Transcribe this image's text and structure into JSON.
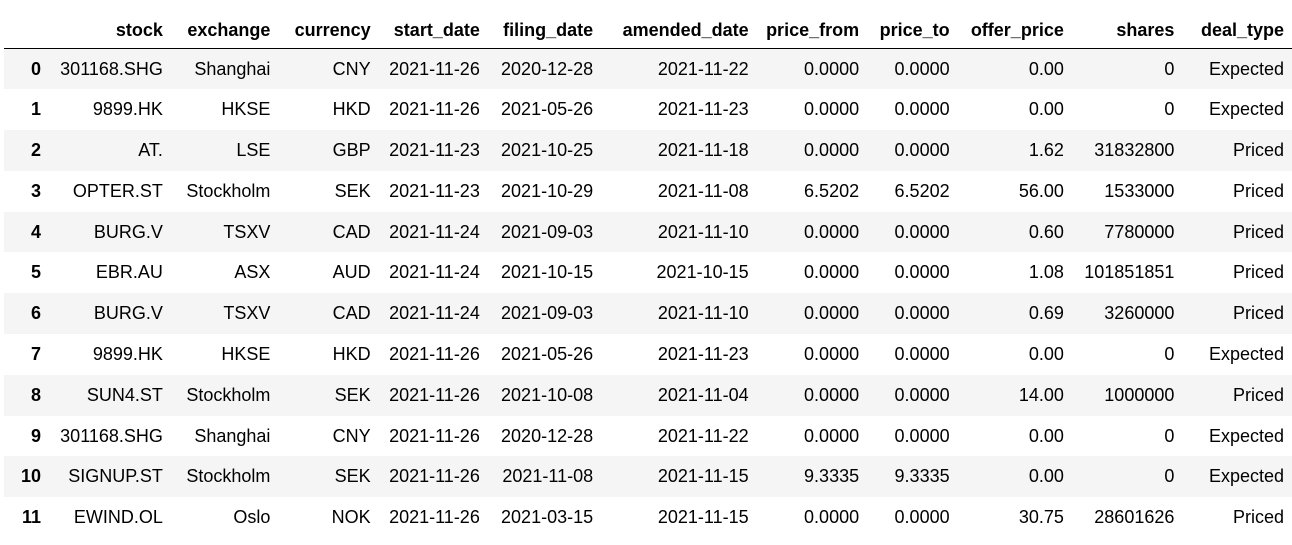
{
  "table": {
    "columns": [
      "stock",
      "exchange",
      "currency",
      "start_date",
      "filing_date",
      "amended_date",
      "price_from",
      "price_to",
      "offer_price",
      "shares",
      "deal_type"
    ],
    "rows": [
      {
        "index": "0",
        "cells": [
          "301168.SHG",
          "Shanghai",
          "CNY",
          "2021-11-26",
          "2020-12-28",
          "2021-11-22",
          "0.0000",
          "0.0000",
          "0.00",
          "0",
          "Expected"
        ]
      },
      {
        "index": "1",
        "cells": [
          "9899.HK",
          "HKSE",
          "HKD",
          "2021-11-26",
          "2021-05-26",
          "2021-11-23",
          "0.0000",
          "0.0000",
          "0.00",
          "0",
          "Expected"
        ]
      },
      {
        "index": "2",
        "cells": [
          "AT.",
          "LSE",
          "GBP",
          "2021-11-23",
          "2021-10-25",
          "2021-11-18",
          "0.0000",
          "0.0000",
          "1.62",
          "31832800",
          "Priced"
        ]
      },
      {
        "index": "3",
        "cells": [
          "OPTER.ST",
          "Stockholm",
          "SEK",
          "2021-11-23",
          "2021-10-29",
          "2021-11-08",
          "6.5202",
          "6.5202",
          "56.00",
          "1533000",
          "Priced"
        ]
      },
      {
        "index": "4",
        "cells": [
          "BURG.V",
          "TSXV",
          "CAD",
          "2021-11-24",
          "2021-09-03",
          "2021-11-10",
          "0.0000",
          "0.0000",
          "0.60",
          "7780000",
          "Priced"
        ]
      },
      {
        "index": "5",
        "cells": [
          "EBR.AU",
          "ASX",
          "AUD",
          "2021-11-24",
          "2021-10-15",
          "2021-10-15",
          "0.0000",
          "0.0000",
          "1.08",
          "101851851",
          "Priced"
        ]
      },
      {
        "index": "6",
        "cells": [
          "BURG.V",
          "TSXV",
          "CAD",
          "2021-11-24",
          "2021-09-03",
          "2021-11-10",
          "0.0000",
          "0.0000",
          "0.69",
          "3260000",
          "Priced"
        ]
      },
      {
        "index": "7",
        "cells": [
          "9899.HK",
          "HKSE",
          "HKD",
          "2021-11-26",
          "2021-05-26",
          "2021-11-23",
          "0.0000",
          "0.0000",
          "0.00",
          "0",
          "Expected"
        ]
      },
      {
        "index": "8",
        "cells": [
          "SUN4.ST",
          "Stockholm",
          "SEK",
          "2021-11-26",
          "2021-10-08",
          "2021-11-04",
          "0.0000",
          "0.0000",
          "14.00",
          "1000000",
          "Priced"
        ]
      },
      {
        "index": "9",
        "cells": [
          "301168.SHG",
          "Shanghai",
          "CNY",
          "2021-11-26",
          "2020-12-28",
          "2021-11-22",
          "0.0000",
          "0.0000",
          "0.00",
          "0",
          "Expected"
        ]
      },
      {
        "index": "10",
        "cells": [
          "SIGNUP.ST",
          "Stockholm",
          "SEK",
          "2021-11-26",
          "2021-11-08",
          "2021-11-15",
          "9.3335",
          "9.3335",
          "0.00",
          "0",
          "Expected"
        ]
      },
      {
        "index": "11",
        "cells": [
          "EWIND.OL",
          "Oslo",
          "NOK",
          "2021-11-26",
          "2021-03-15",
          "2021-11-15",
          "0.0000",
          "0.0000",
          "30.75",
          "28601626",
          "Priced"
        ]
      }
    ]
  }
}
